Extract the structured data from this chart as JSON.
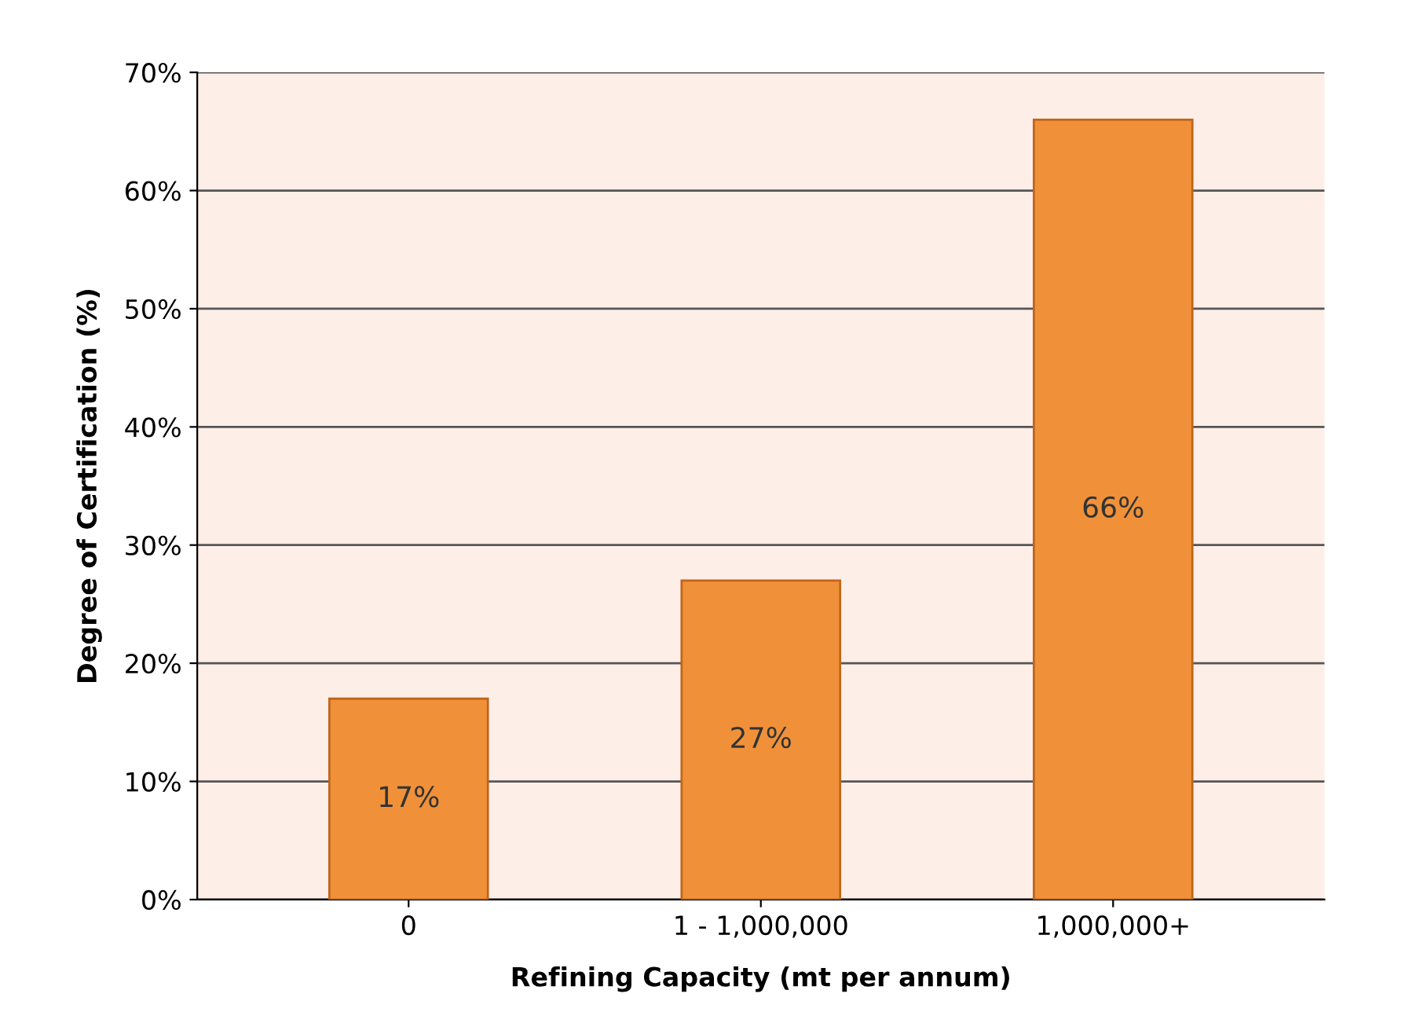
{
  "chart_data": {
    "type": "bar",
    "xlabel": "Refining Capacity (mt per annum)",
    "ylabel": "Degree of Certification (%)",
    "categories": [
      "0",
      "1 - 1,000,000",
      "1,000,000+"
    ],
    "values": [
      17,
      27,
      66
    ],
    "value_labels": [
      "17%",
      "27%",
      "66%"
    ],
    "color": "#f0913a",
    "ylim": [
      0,
      70
    ],
    "yticks": [
      {
        "value": 0,
        "label": "0%"
      },
      {
        "value": 10,
        "label": "10%"
      },
      {
        "value": 20,
        "label": "20%"
      },
      {
        "value": 30,
        "label": "30%"
      },
      {
        "value": 40,
        "label": "40%"
      },
      {
        "value": 50,
        "label": "50%"
      },
      {
        "value": 60,
        "label": "60%"
      },
      {
        "value": 70,
        "label": "70%"
      }
    ],
    "grid": "y",
    "legend": false
  }
}
